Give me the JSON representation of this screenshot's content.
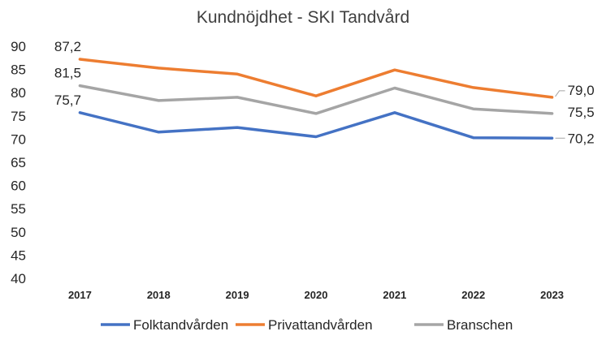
{
  "chart_data": {
    "type": "line",
    "title": "Kundnöjdhet - SKI Tandvård",
    "xlabel": "",
    "ylabel": "",
    "categories": [
      "2017",
      "2018",
      "2019",
      "2020",
      "2021",
      "2022",
      "2023"
    ],
    "ylim": [
      40,
      90
    ],
    "yticks": [
      "40",
      "45",
      "50",
      "55",
      "60",
      "65",
      "70",
      "75",
      "80",
      "85",
      "90"
    ],
    "grid": false,
    "legend": "bottom",
    "series": [
      {
        "name": "Folktandvården",
        "color": "#4472C4",
        "values": [
          75.7,
          71.5,
          72.5,
          70.5,
          75.7,
          70.3,
          70.2
        ],
        "labels": [
          {
            "index": 0,
            "text": "75,7"
          },
          {
            "index": 6,
            "text": "70,2"
          }
        ]
      },
      {
        "name": "Privattandvården",
        "color": "#ED7D31",
        "values": [
          87.2,
          85.3,
          84.0,
          79.3,
          84.9,
          81.1,
          79.0
        ],
        "labels": [
          {
            "index": 0,
            "text": "87,2"
          },
          {
            "index": 6,
            "text": "79,0"
          }
        ]
      },
      {
        "name": "Branschen",
        "color": "#A5A5A5",
        "values": [
          81.5,
          78.3,
          79.0,
          75.5,
          81.0,
          76.5,
          75.5
        ],
        "labels": [
          {
            "index": 0,
            "text": "81,5"
          },
          {
            "index": 6,
            "text": "75,5"
          }
        ]
      }
    ]
  }
}
